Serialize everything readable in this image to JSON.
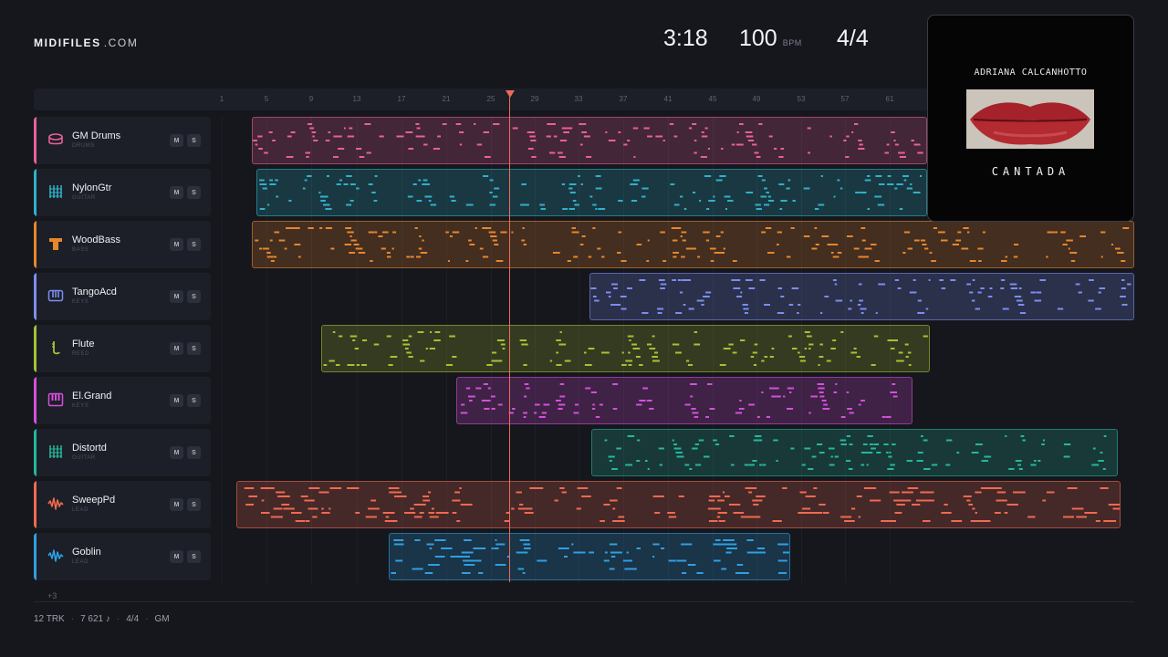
{
  "brand": {
    "name": "MIDIFILES",
    "tld": ".COM"
  },
  "transport": {
    "time": "3:18",
    "tempo": "100",
    "tempo_unit": "BPM",
    "signature": "4/4"
  },
  "ruler": {
    "ticks": [
      "1",
      "5",
      "9",
      "13",
      "17",
      "21",
      "25",
      "29",
      "33",
      "37",
      "41",
      "45",
      "49",
      "53",
      "57",
      "61"
    ]
  },
  "tracks": [
    {
      "name": "GM Drums",
      "category": "DRUMS",
      "color": "#e8609a",
      "icon": "drum-icon"
    },
    {
      "name": "NylonGtr",
      "category": "GUITAR",
      "color": "#2fb2c9",
      "icon": "guitar-icon"
    },
    {
      "name": "WoodBass",
      "category": "BASS",
      "color": "#e8862c",
      "icon": "bass-icon"
    },
    {
      "name": "TangoAcd",
      "category": "KEYS",
      "color": "#7b8ef0",
      "icon": "keyboard-icon"
    },
    {
      "name": "Flute",
      "category": "REED",
      "color": "#a9c034",
      "icon": "flute-icon"
    },
    {
      "name": "El.Grand",
      "category": "KEYS",
      "color": "#d64fdc",
      "icon": "piano-icon"
    },
    {
      "name": "Distortd",
      "category": "GUITAR",
      "color": "#25b79c",
      "icon": "guitar-icon"
    },
    {
      "name": "SweepPd",
      "category": "LEAD",
      "color": "#f06a50",
      "icon": "waveform-icon"
    },
    {
      "name": "Goblin",
      "category": "LEAD",
      "color": "#2f9fe3",
      "icon": "waveform-icon"
    }
  ],
  "buttons": {
    "mute": "M",
    "solo": "S"
  },
  "album": {
    "artist": "ADRIANA CALCANHOTTO",
    "title": "CANTADA"
  },
  "more_tracks": "+3",
  "footer": {
    "tracks": "12 TRK",
    "notes": "7 621 ♪",
    "signature": "4/4",
    "standard": "GM"
  }
}
